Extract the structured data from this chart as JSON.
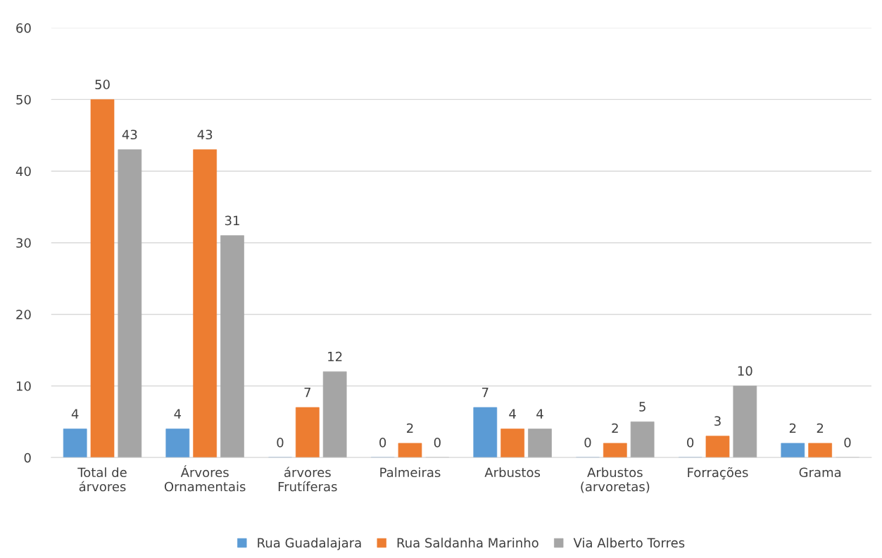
{
  "chart_data": {
    "type": "bar",
    "categories": [
      "Total de\nárvores",
      "Árvores\nOrnamentais",
      "árvores\nFrutíferas",
      "Palmeiras",
      "Arbustos",
      "Arbustos\n(arvoretas)",
      "Forrações",
      "Grama"
    ],
    "series": [
      {
        "name": "Rua Guadalajara",
        "color": "#5b9bd5",
        "values": [
          4,
          4,
          0,
          0,
          7,
          0,
          0,
          2
        ]
      },
      {
        "name": "Rua Saldanha Marinho",
        "color": "#ed7d31",
        "values": [
          50,
          43,
          7,
          2,
          4,
          2,
          3,
          2
        ]
      },
      {
        "name": "Via Alberto Torres",
        "color": "#a5a5a5",
        "values": [
          43,
          31,
          12,
          0,
          4,
          5,
          10,
          0
        ]
      }
    ],
    "ylim": [
      0,
      60
    ],
    "yticks": [
      0,
      10,
      20,
      30,
      40,
      50,
      60
    ],
    "grid": "y",
    "legend": "bottom",
    "data_labels": true
  }
}
